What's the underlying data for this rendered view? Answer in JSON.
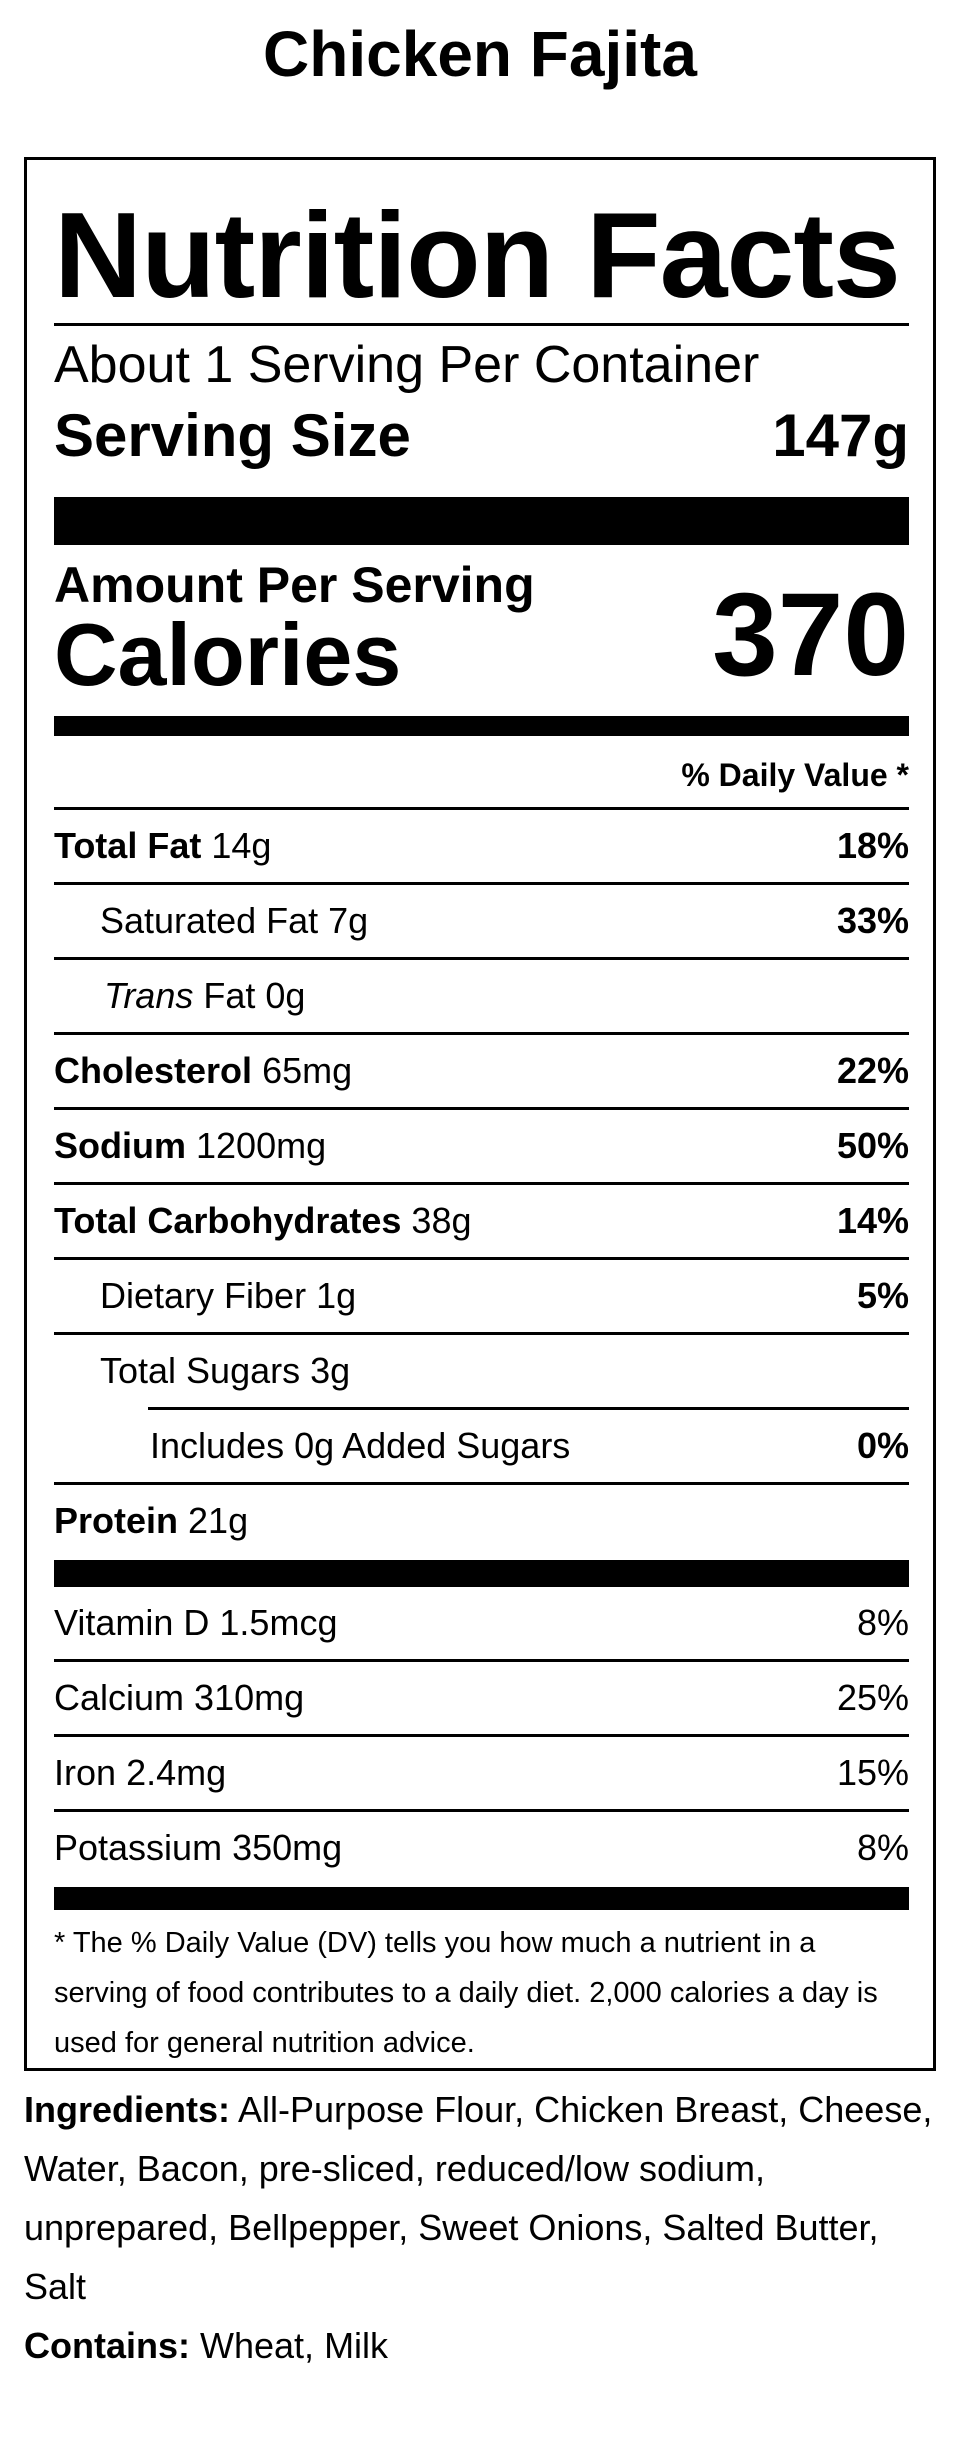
{
  "product_name": "Chicken Fajita",
  "label": {
    "title": "Nutrition Facts",
    "servings_per_container": "About 1 Serving Per Container",
    "serving_size_label": "Serving Size",
    "serving_size_value": "147g",
    "amount_per_serving": "Amount Per Serving",
    "calories_label": "Calories",
    "calories_value": "370",
    "daily_value_header": "% Daily Value *",
    "nutrients": [
      {
        "name": "Total Fat",
        "amount": "14g",
        "dv": "18%"
      },
      {
        "name": "Saturated Fat",
        "amount": "7g",
        "dv": "33%"
      },
      {
        "name": "Trans",
        "suffix": "Fat",
        "amount": "0g",
        "dv": ""
      },
      {
        "name": "Cholesterol",
        "amount": "65mg",
        "dv": "22%"
      },
      {
        "name": "Sodium",
        "amount": "1200mg",
        "dv": "50%"
      },
      {
        "name": "Total Carbohydrates",
        "amount": "38g",
        "dv": "14%"
      },
      {
        "name": "Dietary Fiber",
        "amount": "1g",
        "dv": "5%"
      },
      {
        "name": "Total Sugars",
        "amount": "3g",
        "dv": ""
      },
      {
        "name": "Includes 0g Added Sugars",
        "amount": "",
        "dv": "0%"
      },
      {
        "name": "Protein",
        "amount": "21g",
        "dv": ""
      }
    ],
    "vitamins": [
      {
        "name": "Vitamin D",
        "amount": "1.5mcg",
        "dv": "8%"
      },
      {
        "name": "Calcium",
        "amount": "310mg",
        "dv": "25%"
      },
      {
        "name": "Iron",
        "amount": "2.4mg",
        "dv": "15%"
      },
      {
        "name": "Potassium",
        "amount": "350mg",
        "dv": "8%"
      }
    ],
    "footnote": "* The % Daily Value (DV) tells you how much a nutrient in a serving of food contributes to a daily diet. 2,000 calories a day is used for general nutrition advice."
  },
  "ingredients": {
    "label": "Ingredients:",
    "text": "All-Purpose Flour, Chicken Breast, Cheese, Water, Bacon, pre-sliced, reduced/low sodium, unprepared, Bellpepper, Sweet Onions, Salted Butter, Salt"
  },
  "contains": {
    "label": "Contains:",
    "text": "Wheat, Milk"
  }
}
